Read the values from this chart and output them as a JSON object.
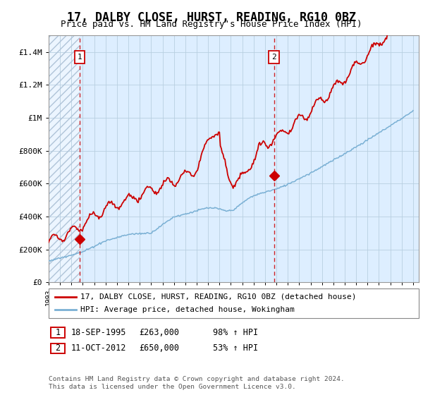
{
  "title": "17, DALBY CLOSE, HURST, READING, RG10 0BZ",
  "subtitle": "Price paid vs. HM Land Registry's House Price Index (HPI)",
  "ylim": [
    0,
    1500000
  ],
  "xlim_start": 1993.0,
  "xlim_end": 2025.5,
  "yticks": [
    0,
    200000,
    400000,
    600000,
    800000,
    1000000,
    1200000,
    1400000
  ],
  "ytick_labels": [
    "£0",
    "£200K",
    "£400K",
    "£600K",
    "£800K",
    "£1M",
    "£1.2M",
    "£1.4M"
  ],
  "sale1_year": 1995.72,
  "sale1_price": 263000,
  "sale2_year": 2012.79,
  "sale2_price": 650000,
  "sale1_date": "18-SEP-1995",
  "sale1_pct": "98% ↑ HPI",
  "sale2_date": "11-OCT-2012",
  "sale2_pct": "53% ↑ HPI",
  "legend_line1": "17, DALBY CLOSE, HURST, READING, RG10 0BZ (detached house)",
  "legend_line2": "HPI: Average price, detached house, Wokingham",
  "footnote": "Contains HM Land Registry data © Crown copyright and database right 2024.\nThis data is licensed under the Open Government Licence v3.0.",
  "red_color": "#cc0000",
  "blue_color": "#7ab0d4",
  "bg_color": "#ddeeff",
  "hatch_color": "#b0c4d8",
  "grid_color": "#b8cfe0",
  "title_fontsize": 12,
  "subtitle_fontsize": 9
}
